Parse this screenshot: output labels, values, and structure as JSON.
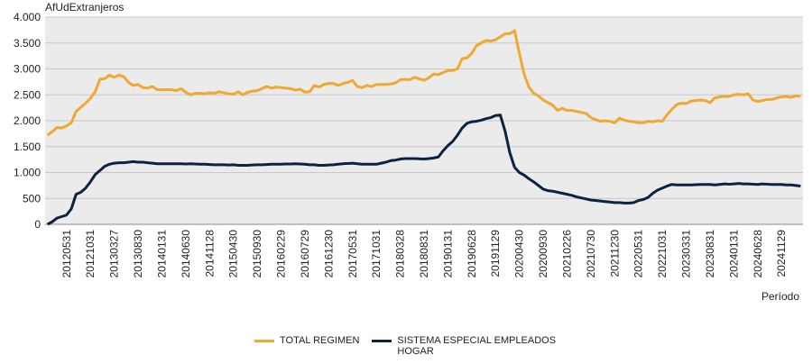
{
  "chart_data": {
    "type": "line",
    "y_label": "AfUdExtranjeros",
    "x_label": "Período",
    "categories": [
      null,
      null,
      null,
      null,
      "20120531",
      null,
      null,
      null,
      null,
      "20121031",
      null,
      null,
      null,
      null,
      "20130327",
      null,
      null,
      null,
      null,
      "20130830",
      null,
      null,
      null,
      null,
      "20140131",
      null,
      null,
      null,
      null,
      "20140630",
      null,
      null,
      null,
      null,
      "20141128",
      null,
      null,
      null,
      null,
      "20150430",
      null,
      null,
      null,
      null,
      "20150930",
      null,
      null,
      null,
      null,
      "20160229",
      null,
      null,
      null,
      null,
      "20160729",
      null,
      null,
      null,
      null,
      "20161230",
      null,
      null,
      null,
      null,
      "20170531",
      null,
      null,
      null,
      null,
      "20171031",
      null,
      null,
      null,
      null,
      "20180328",
      null,
      null,
      null,
      null,
      "20180831",
      null,
      null,
      null,
      null,
      "20190131",
      null,
      null,
      null,
      null,
      "20190628",
      null,
      null,
      null,
      null,
      "20191129",
      null,
      null,
      null,
      null,
      "20200430",
      null,
      null,
      null,
      null,
      "20200930",
      null,
      null,
      null,
      null,
      "20210226",
      null,
      null,
      null,
      null,
      "20210730",
      null,
      null,
      null,
      null,
      "20211230",
      null,
      null,
      null,
      null,
      "20220531",
      null,
      null,
      null,
      null,
      "20221031",
      null,
      null,
      null,
      null,
      "20230331",
      null,
      null,
      null,
      null,
      "20230831",
      null,
      null,
      null,
      null,
      "20240131",
      null,
      null,
      null,
      null,
      "20240628",
      null,
      null,
      null,
      null,
      "20241129",
      null,
      null,
      null,
      null
    ],
    "series": [
      {
        "name": "TOTAL REGIMEN",
        "color": "#f0a830",
        "values": [
          1720,
          1790,
          1870,
          1860,
          1900,
          1960,
          2180,
          2260,
          2340,
          2430,
          2560,
          2800,
          2810,
          2880,
          2840,
          2880,
          2850,
          2740,
          2680,
          2700,
          2640,
          2630,
          2660,
          2600,
          2600,
          2600,
          2600,
          2580,
          2620,
          2550,
          2500,
          2530,
          2530,
          2520,
          2540,
          2530,
          2560,
          2540,
          2520,
          2510,
          2560,
          2500,
          2550,
          2570,
          2580,
          2620,
          2660,
          2630,
          2650,
          2640,
          2630,
          2620,
          2590,
          2610,
          2550,
          2560,
          2680,
          2650,
          2700,
          2720,
          2720,
          2680,
          2720,
          2740,
          2780,
          2660,
          2640,
          2680,
          2660,
          2700,
          2700,
          2700,
          2710,
          2730,
          2790,
          2800,
          2790,
          2840,
          2810,
          2780,
          2830,
          2900,
          2890,
          2930,
          2970,
          2970,
          3000,
          3200,
          3210,
          3300,
          3450,
          3500,
          3550,
          3540,
          3560,
          3620,
          3680,
          3680,
          3740,
          3300,
          2900,
          2650,
          2530,
          2480,
          2400,
          2350,
          2300,
          2200,
          2240,
          2200,
          2200,
          2180,
          2160,
          2140,
          2060,
          2020,
          1990,
          2000,
          1990,
          1960,
          2050,
          2010,
          1990,
          1980,
          1960,
          1960,
          1990,
          1980,
          2000,
          1990,
          2120,
          2220,
          2310,
          2340,
          2330,
          2380,
          2390,
          2400,
          2390,
          2350,
          2440,
          2460,
          2470,
          2470,
          2500,
          2510,
          2500,
          2520,
          2400,
          2370,
          2390,
          2410,
          2410,
          2440,
          2460,
          2470,
          2450,
          2480,
          2470
        ]
      },
      {
        "name": "SISTEMA ESPECIAL EMPLEADOS HOGAR",
        "color": "#0c2340",
        "values": [
          0,
          50,
          120,
          150,
          180,
          300,
          580,
          620,
          700,
          820,
          960,
          1040,
          1120,
          1160,
          1180,
          1190,
          1190,
          1200,
          1210,
          1200,
          1200,
          1190,
          1180,
          1170,
          1170,
          1170,
          1170,
          1170,
          1170,
          1165,
          1170,
          1165,
          1160,
          1160,
          1155,
          1150,
          1150,
          1150,
          1145,
          1150,
          1140,
          1140,
          1140,
          1145,
          1150,
          1150,
          1155,
          1160,
          1160,
          1160,
          1165,
          1165,
          1170,
          1165,
          1160,
          1150,
          1150,
          1140,
          1140,
          1145,
          1150,
          1160,
          1170,
          1175,
          1180,
          1170,
          1160,
          1160,
          1160,
          1160,
          1180,
          1200,
          1230,
          1240,
          1260,
          1270,
          1270,
          1270,
          1265,
          1260,
          1270,
          1280,
          1300,
          1420,
          1520,
          1600,
          1720,
          1860,
          1950,
          1980,
          1990,
          2010,
          2040,
          2060,
          2100,
          2110,
          1800,
          1380,
          1100,
          1000,
          950,
          880,
          820,
          750,
          680,
          650,
          640,
          620,
          600,
          580,
          560,
          530,
          510,
          490,
          470,
          460,
          450,
          440,
          430,
          420,
          420,
          410,
          410,
          420,
          460,
          480,
          520,
          600,
          660,
          700,
          740,
          770,
          760,
          760,
          760,
          760,
          765,
          770,
          770,
          770,
          760,
          770,
          780,
          775,
          780,
          790,
          780,
          780,
          775,
          770,
          780,
          775,
          770,
          770,
          770,
          760,
          760,
          750,
          740
        ]
      }
    ],
    "ylim": [
      0,
      4000
    ],
    "yticks": [
      0,
      500,
      {
        "value": 1000,
        "label": "1.000"
      },
      {
        "value": 1500,
        "label": "1.500"
      },
      {
        "value": 2000,
        "label": "2.000"
      },
      {
        "value": 2500,
        "label": "2.500"
      },
      {
        "value": 3000,
        "label": "3.000"
      },
      {
        "value": 3500,
        "label": "3.500"
      },
      {
        "value": 4000,
        "label": "4.000"
      }
    ],
    "grid": true
  }
}
